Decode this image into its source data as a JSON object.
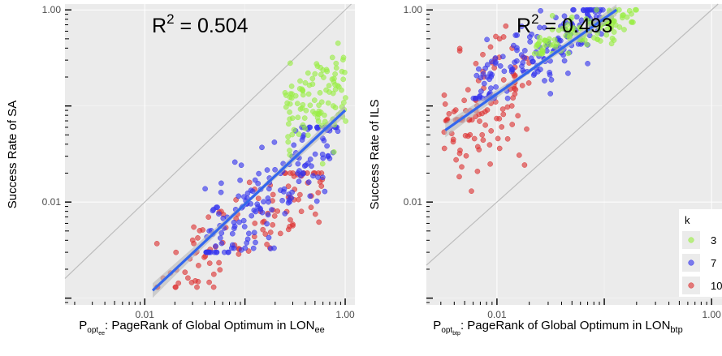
{
  "colors": {
    "panel_bg": "#ebebeb",
    "grid": "#ffffff",
    "diagonal": "#bdbdbd",
    "fit_line": "#3366ee",
    "ci_band": "#b8b8b8",
    "k3": "#99ee44",
    "k7": "#3333ee",
    "k10": "#dd3333"
  },
  "legend": {
    "title": "k",
    "entries": [
      {
        "label": "3",
        "color_key": "k3"
      },
      {
        "label": "7",
        "color_key": "k7"
      },
      {
        "label": "10",
        "color_key": "k10"
      }
    ]
  },
  "chart_data": [
    {
      "type": "scatter",
      "annotation_prefix": "R",
      "annotation_sup": "2",
      "annotation_value": " = 0.504",
      "r_squared": 0.504,
      "ylabel": "Success Rate of SA",
      "xlabel_main": "P",
      "xlabel_sub1": "opt",
      "xlabel_sub2": "ee",
      "xlabel_rest": ": PageRank of Global Optimum in LON",
      "xlabel_sub3": "ee",
      "x_scale": "log10",
      "y_scale": "log10",
      "xlim": [
        0.0016,
        1.25
      ],
      "ylim": [
        0.00085,
        1.15
      ],
      "x_tick_labels": [
        {
          "value": 0.01,
          "label": "0.01"
        },
        {
          "value": 1,
          "label": "1.00"
        }
      ],
      "y_tick_labels": [
        {
          "value": 0.01,
          "label": "0.01"
        },
        {
          "value": 1,
          "label": "1.00"
        }
      ],
      "grid": true,
      "reference_line": "y = x",
      "fit_line": {
        "x": [
          0.012,
          1.0
        ],
        "y": [
          0.0012,
          0.09
        ]
      },
      "clusters": [
        {
          "k": "3",
          "n": 110,
          "x_range": [
            0.25,
            1.05
          ],
          "y_range": [
            0.025,
            0.45
          ],
          "slope": 0.4
        },
        {
          "k": "7",
          "n": 170,
          "x_range": [
            0.04,
            0.85
          ],
          "y_range": [
            0.003,
            0.06
          ],
          "slope": 1.0
        },
        {
          "k": "10",
          "n": 110,
          "x_range": [
            0.013,
            0.6
          ],
          "y_range": [
            0.0013,
            0.02
          ],
          "slope": 0.75
        }
      ]
    },
    {
      "type": "scatter",
      "annotation_prefix": "R",
      "annotation_sup": "2",
      "annotation_value": " = 0.493",
      "r_squared": 0.493,
      "ylabel": "Success Rate of ILS",
      "xlabel_main": "P",
      "xlabel_sub1": "opt",
      "xlabel_sub2": "btp",
      "xlabel_rest": ": PageRank of Global Optimum in LON",
      "xlabel_sub3": "btp",
      "x_scale": "log10",
      "y_scale": "log10",
      "xlim": [
        0.0022,
        1.25
      ],
      "ylim": [
        0.00085,
        1.15
      ],
      "x_tick_labels": [
        {
          "value": 0.01,
          "label": "0.01"
        },
        {
          "value": 1,
          "label": "1.00"
        }
      ],
      "y_tick_labels": [
        {
          "value": 0.01,
          "label": "0.01"
        },
        {
          "value": 1,
          "label": "1.00"
        }
      ],
      "grid": true,
      "reference_line": "y = x",
      "fit_line": {
        "x": [
          0.0033,
          0.13
        ],
        "y": [
          0.056,
          1.0
        ]
      },
      "clusters": [
        {
          "k": "3",
          "n": 110,
          "x_range": [
            0.022,
            0.2
          ],
          "y_range": [
            0.35,
            1.0
          ],
          "slope": 0.35
        },
        {
          "k": "7",
          "n": 170,
          "x_range": [
            0.006,
            0.1
          ],
          "y_range": [
            0.12,
            1.0
          ],
          "slope": 0.8
        },
        {
          "k": "10",
          "n": 110,
          "x_range": [
            0.0032,
            0.02
          ],
          "y_range": [
            0.013,
            0.7
          ],
          "slope": 0.7
        }
      ]
    }
  ]
}
